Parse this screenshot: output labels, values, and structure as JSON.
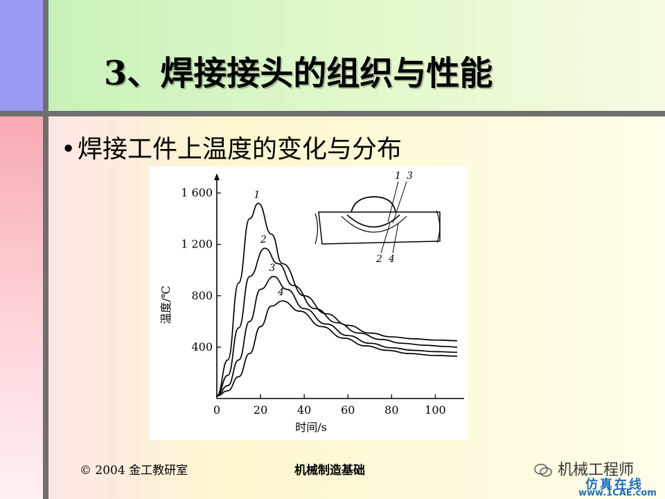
{
  "slide": {
    "title": "3、焊接接头的组织与性能",
    "bullet": "焊接工件上温度的变化与分布",
    "footer_left": "© 2004 金工教研室",
    "footer_center": "机械制造基础",
    "watermark_wechat": "机械工程师",
    "watermark_fangzhen": "仿真在线",
    "watermark_site": "www.1CAE.com"
  },
  "chart_data": {
    "type": "line",
    "xlabel": "时间/s",
    "ylabel": "温度/℃",
    "xlim": [
      0,
      110
    ],
    "ylim": [
      0,
      1700
    ],
    "xticks": [
      0,
      20,
      40,
      60,
      80,
      100
    ],
    "yticks": [
      400,
      800,
      1200,
      1600
    ],
    "ytick_labels": [
      "400",
      "800",
      "1 200",
      "1 600"
    ],
    "series": [
      {
        "name": "1",
        "x": [
          0,
          5,
          10,
          15,
          19,
          25,
          30,
          40,
          50,
          60,
          70,
          80,
          90,
          100,
          110
        ],
        "y": [
          20,
          300,
          900,
          1400,
          1520,
          1280,
          1050,
          800,
          660,
          570,
          510,
          480,
          465,
          455,
          450
        ]
      },
      {
        "name": "2",
        "x": [
          0,
          5,
          10,
          15,
          22,
          28,
          35,
          45,
          55,
          65,
          75,
          85,
          95,
          105,
          110
        ],
        "y": [
          20,
          180,
          550,
          950,
          1170,
          1050,
          880,
          700,
          590,
          510,
          460,
          430,
          415,
          405,
          400
        ]
      },
      {
        "name": "3",
        "x": [
          0,
          5,
          10,
          15,
          20,
          26,
          32,
          40,
          50,
          60,
          70,
          80,
          90,
          100,
          110
        ],
        "y": [
          20,
          100,
          300,
          600,
          850,
          950,
          850,
          700,
          580,
          490,
          430,
          395,
          375,
          365,
          360
        ]
      },
      {
        "name": "4",
        "x": [
          0,
          5,
          10,
          15,
          20,
          25,
          30,
          38,
          48,
          58,
          68,
          78,
          88,
          100,
          110
        ],
        "y": [
          20,
          60,
          170,
          350,
          560,
          720,
          760,
          680,
          560,
          470,
          410,
          375,
          350,
          335,
          330
        ]
      }
    ],
    "inset_labels": [
      "1",
      "3",
      "2",
      "4"
    ]
  }
}
